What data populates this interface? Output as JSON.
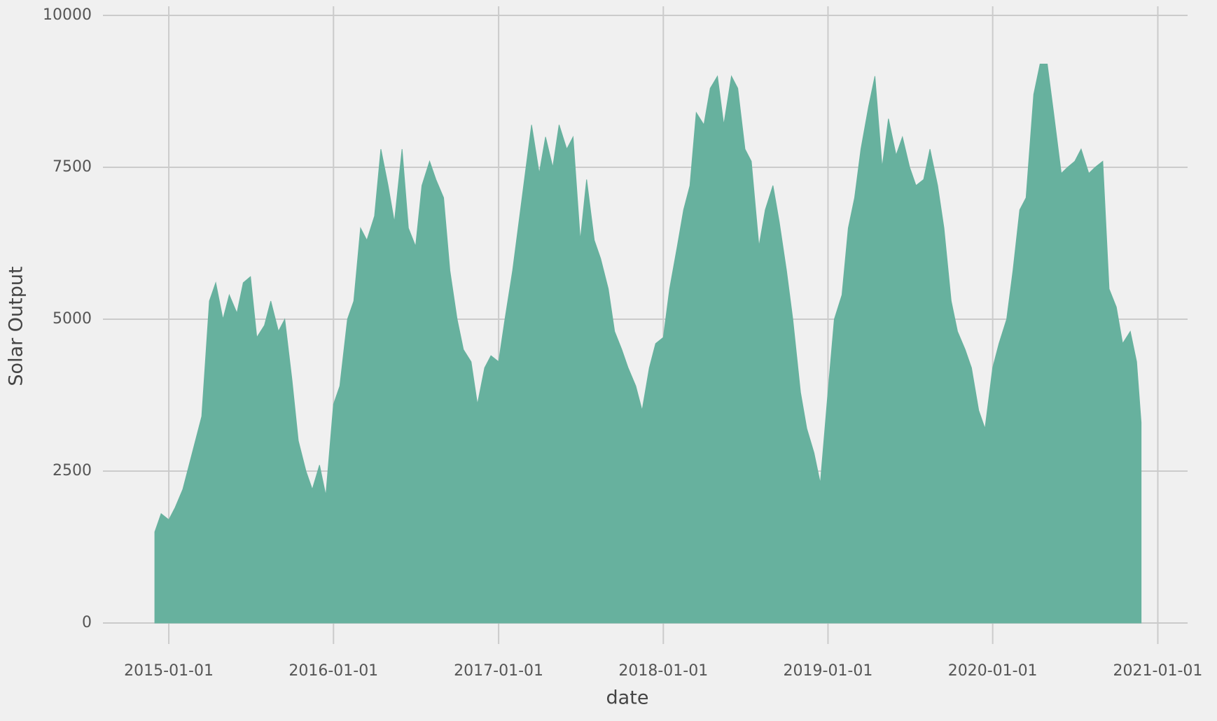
{
  "chart_data": {
    "type": "area",
    "xlabel": "date",
    "ylabel": "Solar Output",
    "color": "#67b19e",
    "grid": true,
    "xlim": [
      "2014-08-08",
      "2021-03-08"
    ],
    "ylim": [
      -345,
      10150
    ],
    "xticks": [
      "2015-01-01",
      "2016-01-01",
      "2017-01-01",
      "2018-01-01",
      "2019-01-01",
      "2020-01-01",
      "2021-01-01"
    ],
    "yticks": [
      0,
      2500,
      5000,
      7500,
      10000
    ],
    "x": [
      "2014-12-01",
      "2014-12-15",
      "2015-01-01",
      "2015-01-15",
      "2015-02-01",
      "2015-02-15",
      "2015-03-01",
      "2015-03-15",
      "2015-04-01",
      "2015-04-15",
      "2015-05-01",
      "2015-05-15",
      "2015-06-01",
      "2015-06-15",
      "2015-07-01",
      "2015-07-15",
      "2015-08-01",
      "2015-08-15",
      "2015-09-01",
      "2015-09-15",
      "2015-10-01",
      "2015-10-15",
      "2015-11-01",
      "2015-11-15",
      "2015-12-01",
      "2015-12-15",
      "2016-01-01",
      "2016-01-15",
      "2016-02-01",
      "2016-02-15",
      "2016-03-01",
      "2016-03-15",
      "2016-04-01",
      "2016-04-15",
      "2016-05-01",
      "2016-05-15",
      "2016-06-01",
      "2016-06-15",
      "2016-07-01",
      "2016-07-15",
      "2016-08-01",
      "2016-08-15",
      "2016-09-01",
      "2016-09-15",
      "2016-10-01",
      "2016-10-15",
      "2016-11-01",
      "2016-11-15",
      "2016-12-01",
      "2016-12-15",
      "2017-01-01",
      "2017-01-15",
      "2017-02-01",
      "2017-02-15",
      "2017-03-01",
      "2017-03-15",
      "2017-04-01",
      "2017-04-15",
      "2017-05-01",
      "2017-05-15",
      "2017-06-01",
      "2017-06-15",
      "2017-07-01",
      "2017-07-15",
      "2017-08-01",
      "2017-08-15",
      "2017-09-01",
      "2017-09-15",
      "2017-10-01",
      "2017-10-15",
      "2017-11-01",
      "2017-11-15",
      "2017-12-01",
      "2017-12-15",
      "2018-01-01",
      "2018-01-15",
      "2018-02-01",
      "2018-02-15",
      "2018-03-01",
      "2018-03-15",
      "2018-04-01",
      "2018-04-15",
      "2018-05-01",
      "2018-05-15",
      "2018-06-01",
      "2018-06-15",
      "2018-07-01",
      "2018-07-15",
      "2018-08-01",
      "2018-08-15",
      "2018-09-01",
      "2018-09-15",
      "2018-10-01",
      "2018-10-15",
      "2018-11-01",
      "2018-11-15",
      "2018-12-01",
      "2018-12-15",
      "2019-01-01",
      "2019-01-15",
      "2019-02-01",
      "2019-02-15",
      "2019-03-01",
      "2019-03-15",
      "2019-04-01",
      "2019-04-15",
      "2019-05-01",
      "2019-05-15",
      "2019-06-01",
      "2019-06-15",
      "2019-07-01",
      "2019-07-15",
      "2019-08-01",
      "2019-08-15",
      "2019-09-01",
      "2019-09-15",
      "2019-10-01",
      "2019-10-15",
      "2019-11-01",
      "2019-11-15",
      "2019-12-01",
      "2019-12-15",
      "2020-01-01",
      "2020-01-15",
      "2020-02-01",
      "2020-02-15",
      "2020-03-01",
      "2020-03-15",
      "2020-04-01",
      "2020-04-15",
      "2020-05-01",
      "2020-05-15",
      "2020-06-01",
      "2020-06-15",
      "2020-07-01",
      "2020-07-15",
      "2020-08-01",
      "2020-08-15",
      "2020-09-01",
      "2020-09-15",
      "2020-10-01",
      "2020-10-15",
      "2020-11-01",
      "2020-11-15",
      "2020-11-25"
    ],
    "values": [
      1500,
      1800,
      1700,
      1900,
      2200,
      2600,
      3000,
      3400,
      5300,
      5600,
      5000,
      5400,
      5100,
      5600,
      5700,
      4700,
      4900,
      5300,
      4800,
      5000,
      4000,
      3000,
      2500,
      2200,
      2600,
      2100,
      3600,
      3900,
      5000,
      5300,
      6500,
      6300,
      6700,
      7800,
      7200,
      6600,
      7800,
      6500,
      6200,
      7200,
      7600,
      7300,
      7000,
      5800,
      5000,
      4500,
      4300,
      3600,
      4200,
      4400,
      4300,
      5000,
      5800,
      6600,
      7400,
      8200,
      7400,
      8000,
      7500,
      8200,
      7800,
      8000,
      6300,
      7300,
      6300,
      6000,
      5500,
      4800,
      4500,
      4200,
      3900,
      3500,
      4200,
      4600,
      4700,
      5500,
      6200,
      6800,
      7200,
      8400,
      8200,
      8800,
      9000,
      8200,
      9000,
      8800,
      7800,
      7600,
      6200,
      6800,
      7200,
      6600,
      5800,
      5000,
      3800,
      3200,
      2800,
      2300,
      3800,
      5000,
      5400,
      6500,
      7000,
      7800,
      8500,
      9000,
      7500,
      8300,
      7700,
      8000,
      7500,
      7200,
      7300,
      7800,
      7200,
      6500,
      5300,
      4800,
      4500,
      4200,
      3500,
      3200,
      4200,
      4600,
      5000,
      5800,
      6800,
      7000,
      8700,
      9200,
      9200,
      8400,
      7400,
      7500,
      7600,
      7800,
      7400,
      7500,
      7600,
      5500,
      5200,
      4600,
      4800,
      4300,
      3300
    ]
  }
}
